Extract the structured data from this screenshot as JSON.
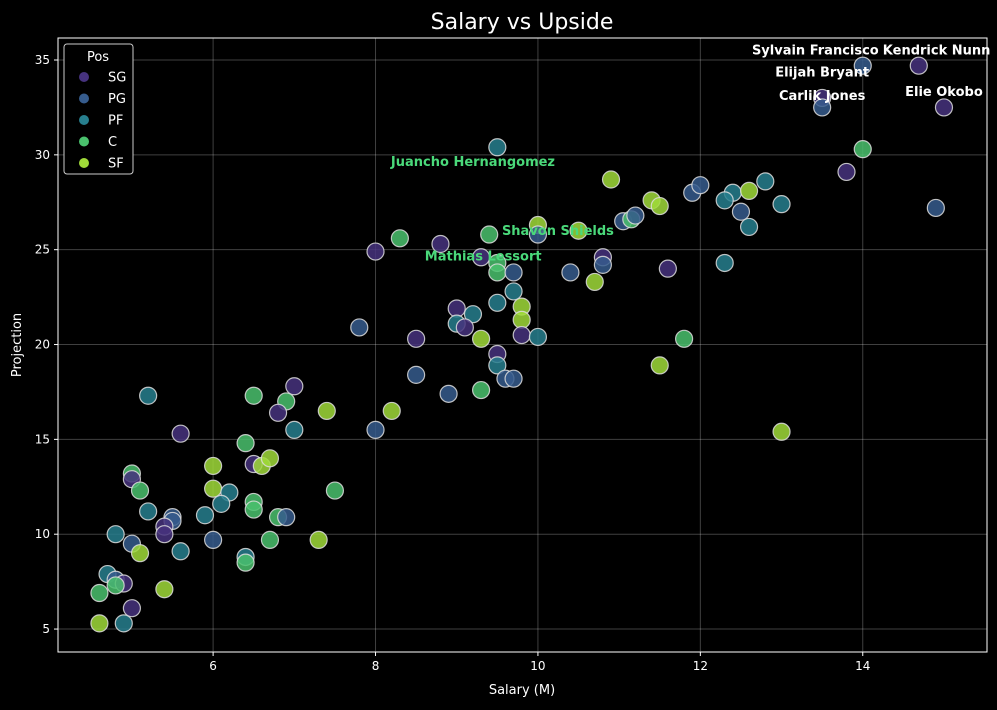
{
  "chart_data": {
    "type": "scatter",
    "title": "Salary vs Upside",
    "xlabel": "Salary (M)",
    "ylabel": "Projection",
    "xlim": [
      4.09,
      15.53
    ],
    "ylim": [
      3.79,
      36.16
    ],
    "xticks": [
      6,
      8,
      10,
      12,
      14
    ],
    "yticks": [
      5,
      10,
      15,
      20,
      25,
      30,
      35
    ],
    "grid": true,
    "legend": {
      "title": "Pos",
      "placement": "top-left",
      "entries": [
        "SG",
        "PG",
        "PF",
        "C",
        "SF"
      ]
    },
    "colors": {
      "SG": "#46327e",
      "PG": "#365c8d",
      "PF": "#277f8e",
      "C": "#4ac16d",
      "SF": "#a0da39"
    },
    "points": [
      {
        "x": 14.69,
        "y": 34.7,
        "pos": "SG"
      },
      {
        "x": 14.0,
        "y": 34.7,
        "pos": "PG"
      },
      {
        "x": 15.0,
        "y": 32.5,
        "pos": "SG"
      },
      {
        "x": 13.5,
        "y": 33.0,
        "pos": "SG"
      },
      {
        "x": 13.5,
        "y": 32.5,
        "pos": "PG"
      },
      {
        "x": 14.0,
        "y": 30.3,
        "pos": "C"
      },
      {
        "x": 13.8,
        "y": 29.1,
        "pos": "SG"
      },
      {
        "x": 14.9,
        "y": 27.2,
        "pos": "PG"
      },
      {
        "x": 9.5,
        "y": 30.4,
        "pos": "PF"
      },
      {
        "x": 10.9,
        "y": 28.7,
        "pos": "SF"
      },
      {
        "x": 11.9,
        "y": 28.0,
        "pos": "PG"
      },
      {
        "x": 12.0,
        "y": 28.4,
        "pos": "PG"
      },
      {
        "x": 11.4,
        "y": 27.6,
        "pos": "SF"
      },
      {
        "x": 11.5,
        "y": 27.3,
        "pos": "SF"
      },
      {
        "x": 11.05,
        "y": 26.5,
        "pos": "PG"
      },
      {
        "x": 11.15,
        "y": 26.6,
        "pos": "C"
      },
      {
        "x": 11.2,
        "y": 26.8,
        "pos": "PG"
      },
      {
        "x": 12.4,
        "y": 28.0,
        "pos": "PF"
      },
      {
        "x": 12.6,
        "y": 28.1,
        "pos": "SF"
      },
      {
        "x": 12.8,
        "y": 28.6,
        "pos": "PF"
      },
      {
        "x": 12.3,
        "y": 27.6,
        "pos": "PF"
      },
      {
        "x": 12.5,
        "y": 27.0,
        "pos": "PG"
      },
      {
        "x": 12.6,
        "y": 26.2,
        "pos": "PF"
      },
      {
        "x": 13.0,
        "y": 27.4,
        "pos": "PF"
      },
      {
        "x": 12.3,
        "y": 24.3,
        "pos": "PF"
      },
      {
        "x": 13.0,
        "y": 15.4,
        "pos": "SF"
      },
      {
        "x": 11.8,
        "y": 20.3,
        "pos": "C"
      },
      {
        "x": 11.5,
        "y": 18.9,
        "pos": "SF"
      },
      {
        "x": 11.6,
        "y": 24.0,
        "pos": "SG"
      },
      {
        "x": 10.8,
        "y": 24.6,
        "pos": "SG"
      },
      {
        "x": 10.8,
        "y": 24.2,
        "pos": "PG"
      },
      {
        "x": 10.7,
        "y": 23.3,
        "pos": "SF"
      },
      {
        "x": 10.4,
        "y": 23.8,
        "pos": "PG"
      },
      {
        "x": 10.5,
        "y": 26.0,
        "pos": "SF"
      },
      {
        "x": 10.0,
        "y": 26.3,
        "pos": "SF"
      },
      {
        "x": 10.0,
        "y": 25.8,
        "pos": "PG"
      },
      {
        "x": 9.4,
        "y": 25.8,
        "pos": "C"
      },
      {
        "x": 8.8,
        "y": 25.3,
        "pos": "SG"
      },
      {
        "x": 8.3,
        "y": 25.6,
        "pos": "C"
      },
      {
        "x": 8.0,
        "y": 24.9,
        "pos": "SG"
      },
      {
        "x": 9.3,
        "y": 24.6,
        "pos": "SG"
      },
      {
        "x": 9.5,
        "y": 24.3,
        "pos": "C"
      },
      {
        "x": 9.5,
        "y": 23.8,
        "pos": "C"
      },
      {
        "x": 9.7,
        "y": 23.8,
        "pos": "PG"
      },
      {
        "x": 9.7,
        "y": 22.8,
        "pos": "PF"
      },
      {
        "x": 9.5,
        "y": 22.2,
        "pos": "PF"
      },
      {
        "x": 9.8,
        "y": 22.0,
        "pos": "SF"
      },
      {
        "x": 9.8,
        "y": 21.3,
        "pos": "SF"
      },
      {
        "x": 9.0,
        "y": 21.9,
        "pos": "SG"
      },
      {
        "x": 9.2,
        "y": 21.6,
        "pos": "PF"
      },
      {
        "x": 9.0,
        "y": 21.1,
        "pos": "PF"
      },
      {
        "x": 9.1,
        "y": 20.9,
        "pos": "SG"
      },
      {
        "x": 9.8,
        "y": 20.5,
        "pos": "SG"
      },
      {
        "x": 10.0,
        "y": 20.4,
        "pos": "PF"
      },
      {
        "x": 9.3,
        "y": 20.3,
        "pos": "SF"
      },
      {
        "x": 8.5,
        "y": 20.3,
        "pos": "SG"
      },
      {
        "x": 7.8,
        "y": 20.9,
        "pos": "PG"
      },
      {
        "x": 9.5,
        "y": 19.5,
        "pos": "SG"
      },
      {
        "x": 9.5,
        "y": 18.9,
        "pos": "PF"
      },
      {
        "x": 9.6,
        "y": 18.2,
        "pos": "PG"
      },
      {
        "x": 9.7,
        "y": 18.2,
        "pos": "PG"
      },
      {
        "x": 8.5,
        "y": 18.4,
        "pos": "PG"
      },
      {
        "x": 8.9,
        "y": 17.4,
        "pos": "PG"
      },
      {
        "x": 9.3,
        "y": 17.6,
        "pos": "C"
      },
      {
        "x": 5.2,
        "y": 17.3,
        "pos": "PF"
      },
      {
        "x": 6.5,
        "y": 17.3,
        "pos": "C"
      },
      {
        "x": 7.0,
        "y": 17.8,
        "pos": "SG"
      },
      {
        "x": 6.9,
        "y": 17.0,
        "pos": "C"
      },
      {
        "x": 6.8,
        "y": 16.4,
        "pos": "SG"
      },
      {
        "x": 7.4,
        "y": 16.5,
        "pos": "SF"
      },
      {
        "x": 8.2,
        "y": 16.5,
        "pos": "SF"
      },
      {
        "x": 7.0,
        "y": 15.5,
        "pos": "PF"
      },
      {
        "x": 8.0,
        "y": 15.5,
        "pos": "PG"
      },
      {
        "x": 5.6,
        "y": 15.3,
        "pos": "SG"
      },
      {
        "x": 6.4,
        "y": 14.8,
        "pos": "C"
      },
      {
        "x": 6.0,
        "y": 13.6,
        "pos": "SF"
      },
      {
        "x": 6.5,
        "y": 13.7,
        "pos": "SG"
      },
      {
        "x": 6.6,
        "y": 13.6,
        "pos": "SF"
      },
      {
        "x": 6.7,
        "y": 14.0,
        "pos": "SF"
      },
      {
        "x": 5.0,
        "y": 13.2,
        "pos": "C"
      },
      {
        "x": 5.0,
        "y": 12.9,
        "pos": "SG"
      },
      {
        "x": 5.1,
        "y": 12.3,
        "pos": "C"
      },
      {
        "x": 6.0,
        "y": 12.4,
        "pos": "SF"
      },
      {
        "x": 6.2,
        "y": 12.2,
        "pos": "PF"
      },
      {
        "x": 6.1,
        "y": 11.6,
        "pos": "PF"
      },
      {
        "x": 7.5,
        "y": 12.3,
        "pos": "C"
      },
      {
        "x": 6.5,
        "y": 11.7,
        "pos": "C"
      },
      {
        "x": 6.5,
        "y": 11.3,
        "pos": "C"
      },
      {
        "x": 5.2,
        "y": 11.2,
        "pos": "PF"
      },
      {
        "x": 5.5,
        "y": 10.9,
        "pos": "PG"
      },
      {
        "x": 5.5,
        "y": 10.7,
        "pos": "PG"
      },
      {
        "x": 5.4,
        "y": 10.4,
        "pos": "SG"
      },
      {
        "x": 5.4,
        "y": 10.0,
        "pos": "SG"
      },
      {
        "x": 5.9,
        "y": 11.0,
        "pos": "PF"
      },
      {
        "x": 6.8,
        "y": 10.9,
        "pos": "C"
      },
      {
        "x": 6.9,
        "y": 10.9,
        "pos": "PG"
      },
      {
        "x": 4.8,
        "y": 10.0,
        "pos": "PF"
      },
      {
        "x": 5.0,
        "y": 9.5,
        "pos": "PG"
      },
      {
        "x": 5.1,
        "y": 9.0,
        "pos": "SF"
      },
      {
        "x": 5.6,
        "y": 9.1,
        "pos": "PF"
      },
      {
        "x": 6.0,
        "y": 9.7,
        "pos": "PG"
      },
      {
        "x": 6.7,
        "y": 9.7,
        "pos": "C"
      },
      {
        "x": 7.3,
        "y": 9.7,
        "pos": "SF"
      },
      {
        "x": 6.4,
        "y": 8.8,
        "pos": "PF"
      },
      {
        "x": 6.4,
        "y": 8.5,
        "pos": "C"
      },
      {
        "x": 4.7,
        "y": 7.9,
        "pos": "PF"
      },
      {
        "x": 4.8,
        "y": 7.6,
        "pos": "PG"
      },
      {
        "x": 4.9,
        "y": 7.4,
        "pos": "SG"
      },
      {
        "x": 4.8,
        "y": 7.3,
        "pos": "C"
      },
      {
        "x": 4.6,
        "y": 6.9,
        "pos": "C"
      },
      {
        "x": 5.4,
        "y": 7.1,
        "pos": "SF"
      },
      {
        "x": 5.0,
        "y": 6.1,
        "pos": "SG"
      },
      {
        "x": 4.6,
        "y": 5.3,
        "pos": "SF"
      },
      {
        "x": 4.9,
        "y": 5.3,
        "pos": "PF"
      }
    ],
    "annotations": [
      {
        "text": "Sylvain Francisco",
        "x": 14.0,
        "y": 35.3,
        "color": "#ffffff"
      },
      {
        "text": "Kendrick Nunn",
        "x": 14.69,
        "y": 35.3,
        "color": "#ffffff"
      },
      {
        "text": "Elijah Bryant",
        "x": 13.5,
        "y": 33.6,
        "color": "#ffffff"
      },
      {
        "text": "Carlik Jones",
        "x": 13.5,
        "y": 33.1,
        "color": "#ffffff"
      },
      {
        "text": "Elie Okobo",
        "x": 15.0,
        "y": 33.1,
        "color": "#ffffff"
      },
      {
        "text": "Juancho Hernangomez",
        "x": 9.2,
        "y": 29.4,
        "color": "#4ad97a"
      },
      {
        "text": "Shavon Shields",
        "x": 10.0,
        "y": 25.3,
        "color": "#4ad97a"
      },
      {
        "text": "Mathias Lessort",
        "x": 9.4,
        "y": 24.8,
        "color": "#4ad97a"
      }
    ]
  }
}
